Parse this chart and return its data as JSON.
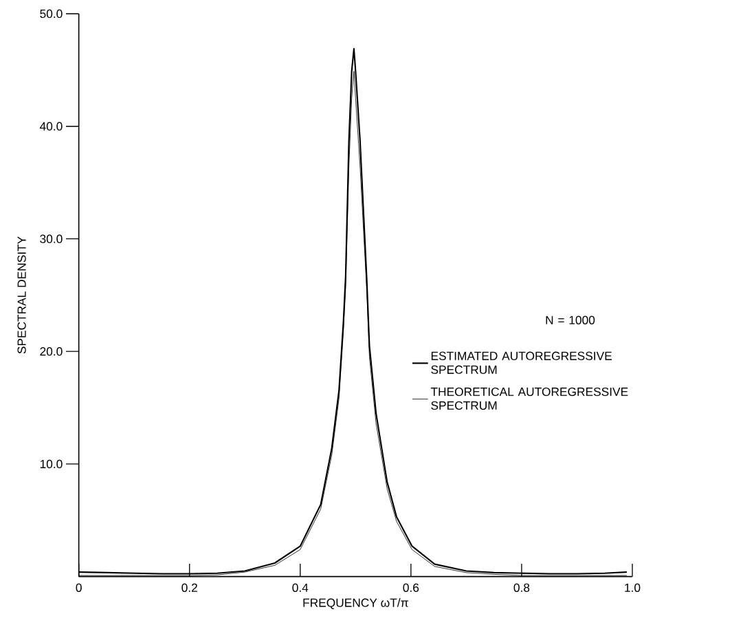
{
  "chart_data": {
    "type": "line",
    "xlabel": "FREQUENCY ωT/π",
    "ylabel": "SPECTRAL DENSITY",
    "legend_title": "N = 1000",
    "legend": "right",
    "grid": false,
    "marker": "none",
    "line_style": "solid",
    "xlim": [
      0,
      1
    ],
    "ylim": [
      0,
      50
    ],
    "xticks": [
      0,
      0.2,
      0.4,
      0.6,
      0.8,
      {
        "value": 1,
        "label": "1.0"
      }
    ],
    "yticks": [
      {
        "value": 10,
        "label": "10.0"
      },
      {
        "value": 20,
        "label": "20.0"
      },
      {
        "value": 30,
        "label": "30.0"
      },
      {
        "value": 40,
        "label": "40.0"
      },
      {
        "value": 50,
        "label": "50.0"
      }
    ],
    "x": [
      0,
      0.05,
      0.1,
      0.15,
      0.2,
      0.25,
      0.3,
      0.354,
      0.4,
      0.437,
      0.457,
      0.47,
      0.478,
      0.482,
      0.488,
      0.493,
      0.497,
      0.5,
      0.508,
      0.52,
      0.525,
      0.537,
      0.557,
      0.574,
      0.602,
      0.643,
      0.7,
      0.75,
      0.8,
      0.85,
      0.9,
      0.95,
      0.99
    ],
    "series": [
      {
        "name": "ESTIMATED AUTOREGRESSIVE SPECTRUM",
        "color": "#000000",
        "values": [
          0.4,
          0.35,
          0.3,
          0.25,
          0.25,
          0.3,
          0.5,
          1.2,
          2.7,
          6.4,
          11.4,
          16.5,
          22.6,
          26.6,
          38.8,
          44.9,
          46.9,
          44.9,
          38.8,
          26.6,
          20.5,
          14.5,
          8.4,
          5.3,
          2.7,
          1.1,
          0.5,
          0.35,
          0.3,
          0.25,
          0.25,
          0.3,
          0.4
        ]
      },
      {
        "name": "THEORETICAL AUTOREGRESSIVE SPECTRUM",
        "color": "#000000",
        "values": [
          0.1,
          0.1,
          0.1,
          0.1,
          0.1,
          0.15,
          0.4,
          1.0,
          2.4,
          6.0,
          10.8,
          15.8,
          21.8,
          25.6,
          36.5,
          42.5,
          44.9,
          42.5,
          36.5,
          25.6,
          19.5,
          13.6,
          7.8,
          4.9,
          2.4,
          0.9,
          0.35,
          0.2,
          0.1,
          0.1,
          0.1,
          0.1,
          0.1
        ]
      }
    ]
  }
}
